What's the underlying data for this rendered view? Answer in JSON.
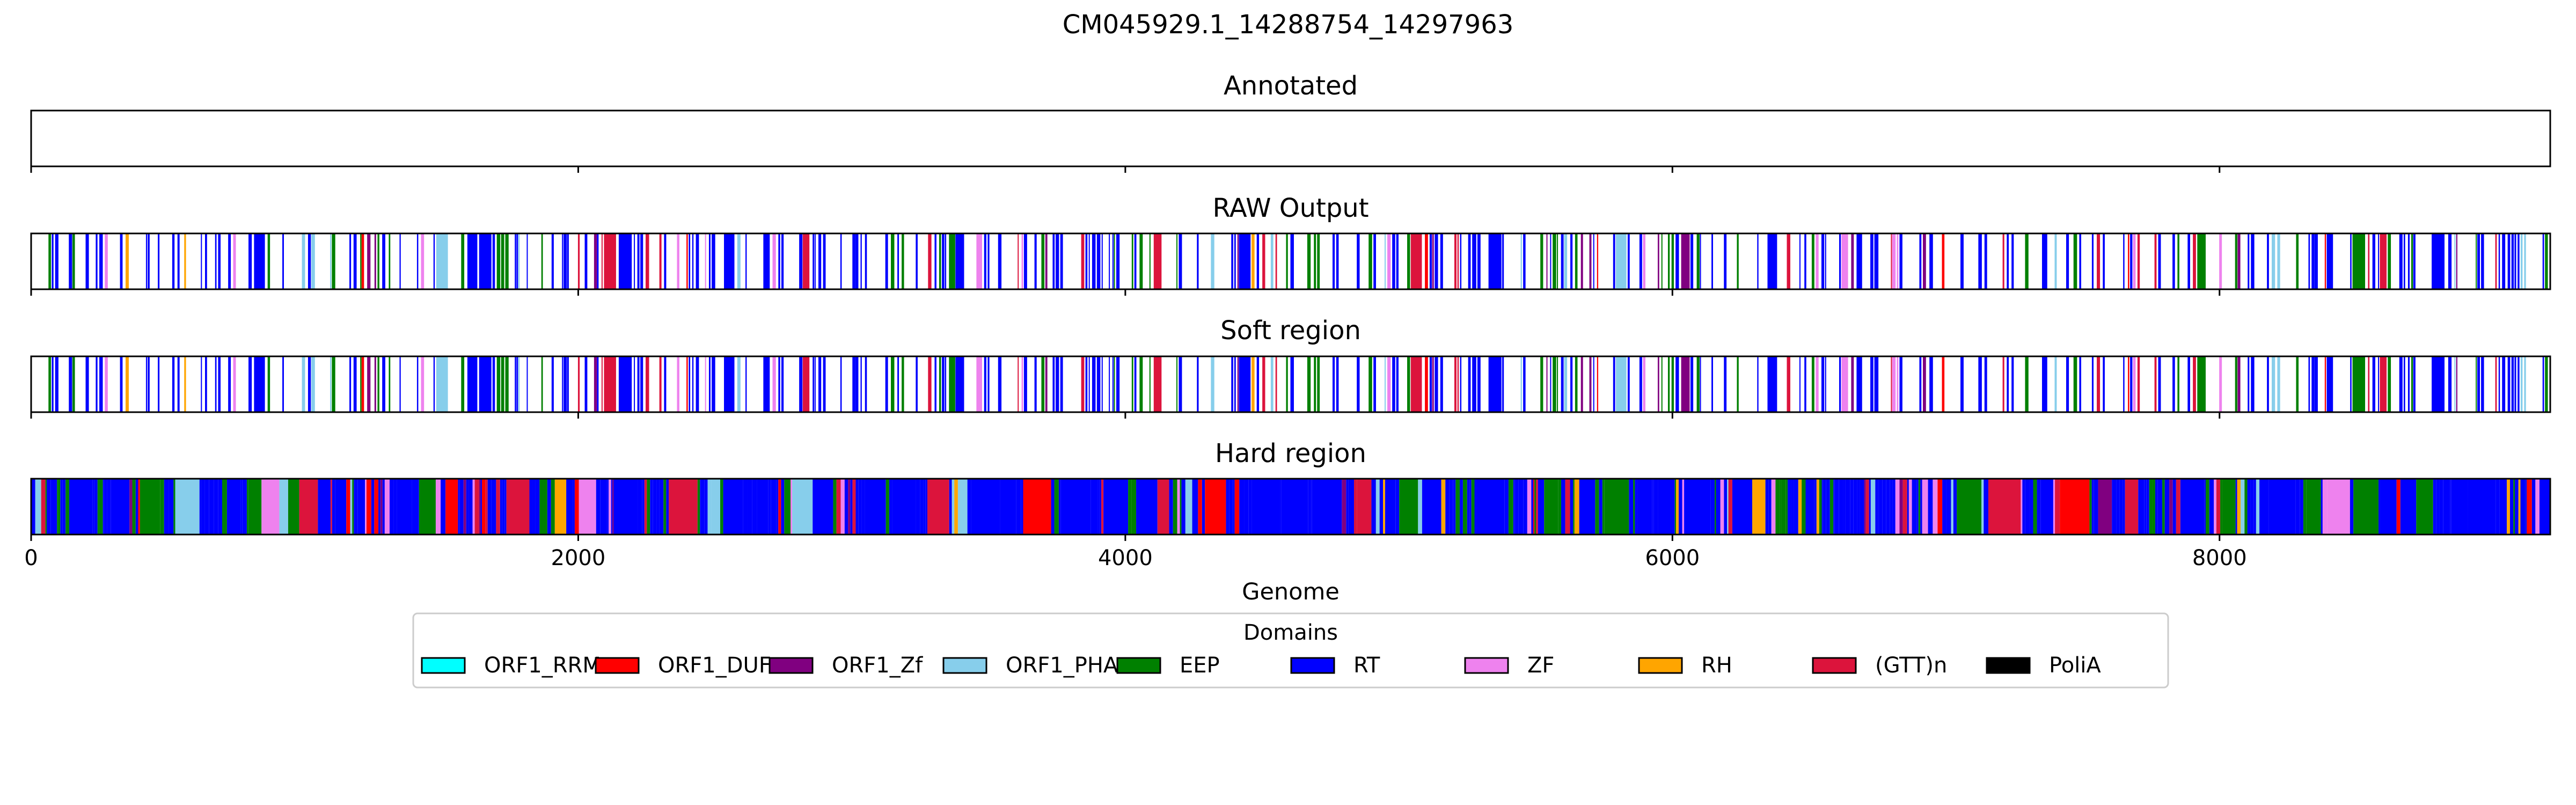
{
  "chart_data": {
    "type": "bar",
    "title": "CM045929.1_14288754_14297963",
    "xlabel": "Genome",
    "xlim": [
      0,
      9209
    ],
    "xticks": [
      0,
      2000,
      4000,
      6000,
      8000
    ],
    "xtick_labels": [
      "0",
      "2000",
      "4000",
      "6000",
      "8000"
    ],
    "panels": [
      {
        "title": "Annotated",
        "segments": [],
        "show_tick_labels": false
      },
      {
        "title": "RAW Output",
        "fill": "sparse",
        "show_tick_labels": false
      },
      {
        "title": "Soft region",
        "fill": "sparse",
        "show_tick_labels": false
      },
      {
        "title": "Hard region",
        "fill": "dense",
        "show_tick_labels": true
      }
    ],
    "legend": {
      "title": "Domains",
      "placement": "below",
      "entries": [
        {
          "name": "ORF1_RRM",
          "color": "#00ffff"
        },
        {
          "name": "ORF1_DUF",
          "color": "#ff0000"
        },
        {
          "name": "ORF1_Zf",
          "color": "#800080"
        },
        {
          "name": "ORF1_PHA",
          "color": "#87ceeb"
        },
        {
          "name": "EEP",
          "color": "#008000"
        },
        {
          "name": "RT",
          "color": "#0000ff"
        },
        {
          "name": "ZF",
          "color": "#ee82ee"
        },
        {
          "name": "RH",
          "color": "#ffa500"
        },
        {
          "name": "(GTT)n",
          "color": "#dc143c"
        },
        {
          "name": "PoliA",
          "color": "#000000"
        }
      ]
    }
  }
}
